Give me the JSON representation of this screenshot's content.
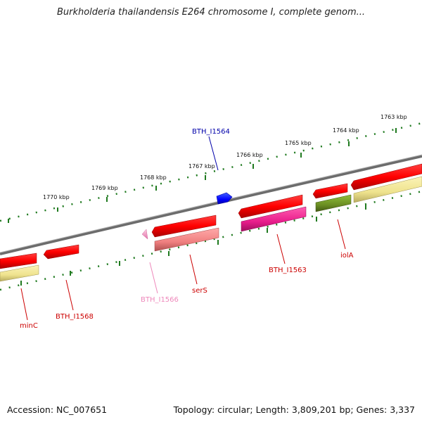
{
  "title": "Burkholderia thailandensis E264 chromosome I, complete genom...",
  "footer": {
    "accession": "Accession: NC_007651",
    "summary": "Topology: circular; Length: 3,809,201 bp; Genes: 3,337"
  },
  "colors": {
    "backbone": "#7a7a7a",
    "ruler": "#1f7a1f",
    "label_red": "#cc0000",
    "label_blue": "#0000aa",
    "label_pink": "#ee88bb"
  },
  "ruler": {
    "ticks": [
      "1770 kbp",
      "1769 kbp",
      "1768 kbp",
      "1767 kbp",
      "1766 kbp",
      "1765 kbp",
      "1764 kbp",
      "1763 kbp"
    ]
  },
  "genes": [
    {
      "label": "minC",
      "color": "#ff0000",
      "strand": "-"
    },
    {
      "label": "BTH_I1568",
      "color": "#ff0000",
      "strand": "-"
    },
    {
      "label": "BTH_I1566",
      "color": "#f48fb1",
      "strand": "-"
    },
    {
      "label": "serS",
      "color": "#f08080",
      "strand": "-"
    },
    {
      "label": "BTH_I1564",
      "color": "#0000ff",
      "strand": "+"
    },
    {
      "label": "BTH_I1563",
      "color": "#e91e8c",
      "strand": "-"
    },
    {
      "label": "iolA",
      "color": "#6b8e23",
      "strand": "-"
    }
  ]
}
